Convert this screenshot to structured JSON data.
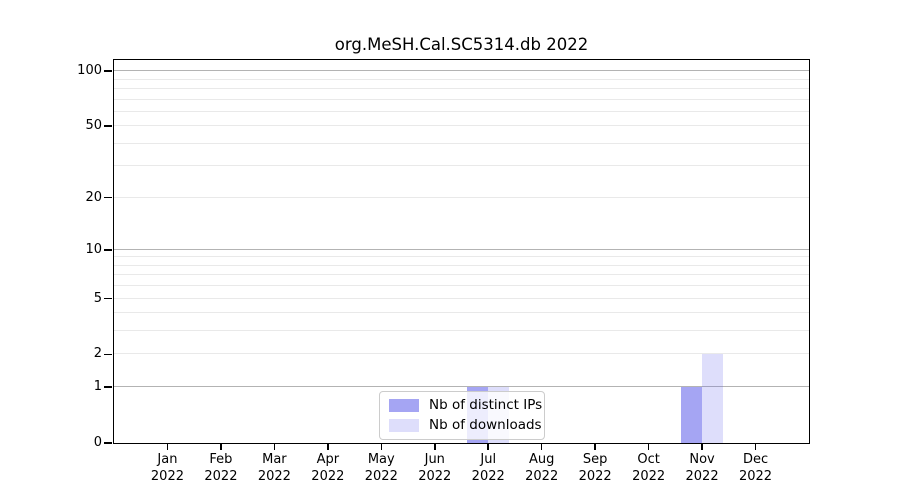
{
  "title": "org.MeSH.Cal.SC5314.db 2022",
  "chart_data": {
    "type": "bar",
    "title": "org.MeSH.Cal.SC5314.db 2022",
    "year_label": "2022",
    "categories": [
      "Jan",
      "Feb",
      "Mar",
      "Apr",
      "May",
      "Jun",
      "Jul",
      "Aug",
      "Sep",
      "Oct",
      "Nov",
      "Dec"
    ],
    "series": [
      {
        "name": "Nb of distinct IPs",
        "base_color": "#6464eb",
        "alpha": 0.58,
        "values": [
          0,
          0,
          0,
          0,
          0,
          0,
          1,
          0,
          0,
          0,
          1,
          0
        ]
      },
      {
        "name": "Nb of downloads",
        "base_color": "#6464eb",
        "alpha": 0.21,
        "values": [
          0,
          0,
          0,
          0,
          0,
          0,
          1,
          0,
          0,
          0,
          2,
          0
        ]
      }
    ],
    "xlabel": "",
    "ylabel": "",
    "yscale": "log1p",
    "ylim": [
      0,
      115
    ],
    "y_tick_values": [
      0,
      1,
      2,
      5,
      10,
      20,
      50,
      100
    ],
    "y_tick_labels": [
      "0",
      "1",
      "2",
      "5",
      "10",
      "20",
      "50",
      "100"
    ],
    "gridlines": {
      "orientation": "horizontal",
      "major_values": [
        1,
        10,
        100
      ],
      "minor_values": [
        2,
        3,
        4,
        5,
        6,
        7,
        8,
        9,
        20,
        30,
        40,
        50,
        60,
        70,
        80,
        90
      ],
      "major_color": "#b3b3b3",
      "minor_color": "#e9e9e9"
    },
    "legend_position": "lower center inside",
    "axis_color": "#000000",
    "background_color": "#ffffff"
  }
}
